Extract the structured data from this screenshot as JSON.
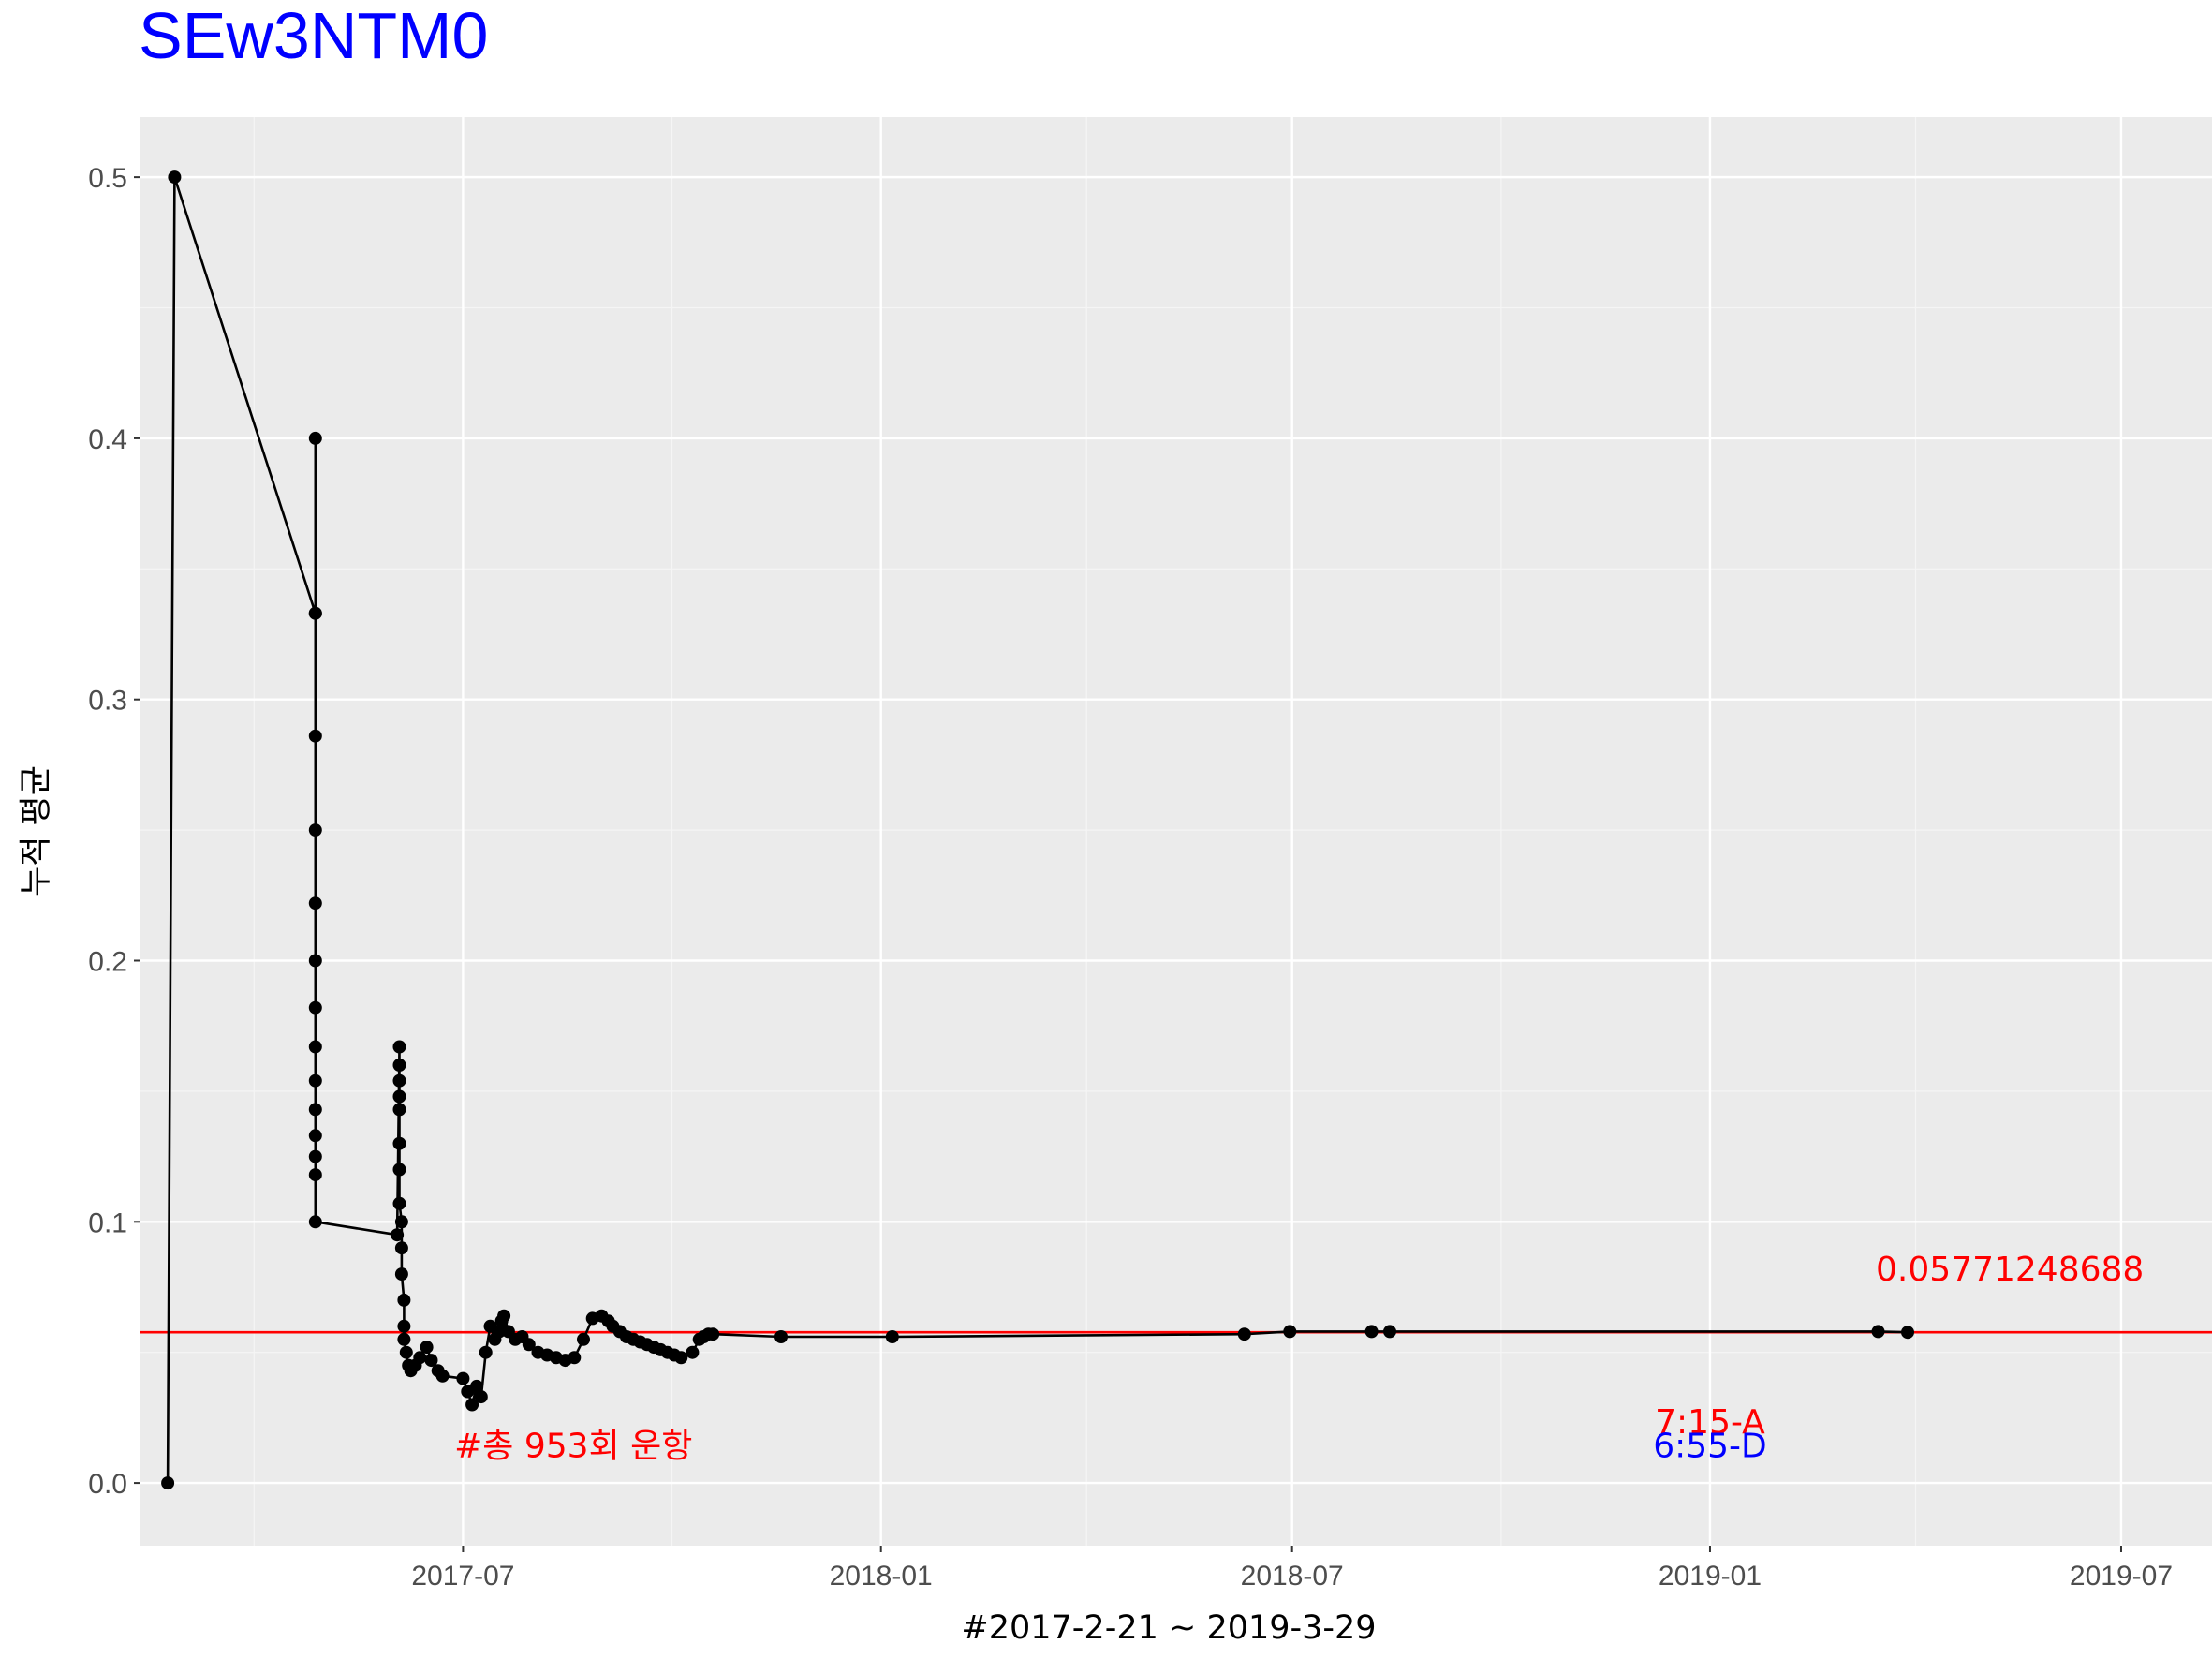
{
  "colors": {
    "panel": "#EBEBEB",
    "grid_major": "#FFFFFF",
    "grid_minor": "#F5F5F5",
    "line": "#000000",
    "points": "#000000",
    "mean_line": "#FF0000",
    "title": "#0000FF",
    "annotation_red": "#FF0000",
    "annotation_blue": "#0000FF"
  },
  "chart_data": {
    "type": "line",
    "title": "SEw3NTM0",
    "xlabel": "#2017-2-21 ~ 2019-3-29",
    "ylabel": "누적 평균",
    "x_type": "date",
    "xlim": [
      "2017-02-09",
      "2019-08-10"
    ],
    "ylim": [
      -0.024,
      0.523
    ],
    "x_ticks": [
      "2017-07-01",
      "2018-01-01",
      "2018-07-01",
      "2019-01-01",
      "2019-07-01"
    ],
    "x_tick_labels": [
      "2017-07",
      "2018-01",
      "2018-07",
      "2019-01",
      "2019-07"
    ],
    "y_ticks": [
      0.0,
      0.1,
      0.2,
      0.3,
      0.4,
      0.5
    ],
    "y_tick_labels": [
      "0.0",
      "0.1",
      "0.2",
      "0.3",
      "0.4",
      "0.5"
    ],
    "grid": true,
    "legend": "none",
    "series": [
      {
        "x": [
          "2017-02-21",
          "2017-02-24",
          "2017-04-27",
          "2017-04-27",
          "2017-04-27",
          "2017-04-27",
          "2017-04-27",
          "2017-04-27",
          "2017-04-27",
          "2017-04-27",
          "2017-04-27",
          "2017-04-27",
          "2017-04-27",
          "2017-04-27",
          "2017-04-27",
          "2017-04-27",
          "2017-04-27",
          "2017-06-02",
          "2017-06-03",
          "2017-06-03",
          "2017-06-03",
          "2017-06-03",
          "2017-06-03",
          "2017-06-03",
          "2017-06-03",
          "2017-06-03",
          "2017-06-04",
          "2017-06-04",
          "2017-06-04",
          "2017-06-05",
          "2017-06-05",
          "2017-06-05",
          "2017-06-06",
          "2017-06-07",
          "2017-06-08",
          "2017-06-10",
          "2017-06-12",
          "2017-06-15",
          "2017-06-17",
          "2017-06-20",
          "2017-06-22",
          "2017-07-01",
          "2017-07-03",
          "2017-07-05",
          "2017-07-07",
          "2017-07-09",
          "2017-07-11",
          "2017-07-13",
          "2017-07-15",
          "2017-07-17",
          "2017-07-18",
          "2017-07-19",
          "2017-07-21",
          "2017-07-24",
          "2017-07-27",
          "2017-07-30",
          "2017-08-03",
          "2017-08-07",
          "2017-08-11",
          "2017-08-15",
          "2017-08-19",
          "2017-08-23",
          "2017-08-27",
          "2017-08-31",
          "2017-09-03",
          "2017-09-05",
          "2017-09-08",
          "2017-09-11",
          "2017-09-14",
          "2017-09-17",
          "2017-09-20",
          "2017-09-23",
          "2017-09-26",
          "2017-09-29",
          "2017-10-02",
          "2017-10-05",
          "2017-10-10",
          "2017-10-13",
          "2017-10-15",
          "2017-10-17",
          "2017-10-19",
          "2017-11-18",
          "2018-01-06",
          "2018-06-10",
          "2018-06-30",
          "2018-08-05",
          "2018-08-13",
          "2019-03-16",
          "2019-03-29"
        ],
        "y": [
          0.0,
          0.5,
          0.333,
          0.4,
          0.333,
          0.286,
          0.25,
          0.222,
          0.2,
          0.182,
          0.167,
          0.154,
          0.143,
          0.133,
          0.125,
          0.118,
          0.1,
          0.095,
          0.167,
          0.16,
          0.154,
          0.148,
          0.143,
          0.13,
          0.12,
          0.107,
          0.1,
          0.09,
          0.08,
          0.07,
          0.06,
          0.055,
          0.05,
          0.045,
          0.043,
          0.045,
          0.048,
          0.052,
          0.047,
          0.043,
          0.041,
          0.04,
          0.035,
          0.03,
          0.037,
          0.033,
          0.05,
          0.06,
          0.055,
          0.058,
          0.062,
          0.064,
          0.058,
          0.055,
          0.056,
          0.053,
          0.05,
          0.049,
          0.048,
          0.047,
          0.048,
          0.055,
          0.063,
          0.064,
          0.062,
          0.06,
          0.058,
          0.056,
          0.055,
          0.054,
          0.053,
          0.052,
          0.051,
          0.05,
          0.049,
          0.048,
          0.05,
          0.055,
          0.056,
          0.057,
          0.057,
          0.056,
          0.056,
          0.057,
          0.058,
          0.058,
          0.058,
          0.058,
          0.0577
        ]
      }
    ],
    "hlines": [
      {
        "y": 0.0577124868835257,
        "color": "#FF0000"
      }
    ],
    "annotations": [
      {
        "text": "0.05771248688",
        "x": "2019-03-15",
        "y": 0.0775,
        "color": "#FF0000",
        "anchor": "start"
      },
      {
        "text": "#총 953회 운항",
        "x": "2017-10-10",
        "y": 0.0099,
        "color": "#FF0000",
        "anchor": "end"
      },
      {
        "text": "7:15-A",
        "x": "2019-01-01",
        "y": 0.019,
        "color": "#FF0000",
        "anchor": "middle"
      },
      {
        "text": "6:55-D",
        "x": "2019-01-01",
        "y": 0.0099,
        "color": "#0000FF",
        "anchor": "middle"
      }
    ]
  }
}
